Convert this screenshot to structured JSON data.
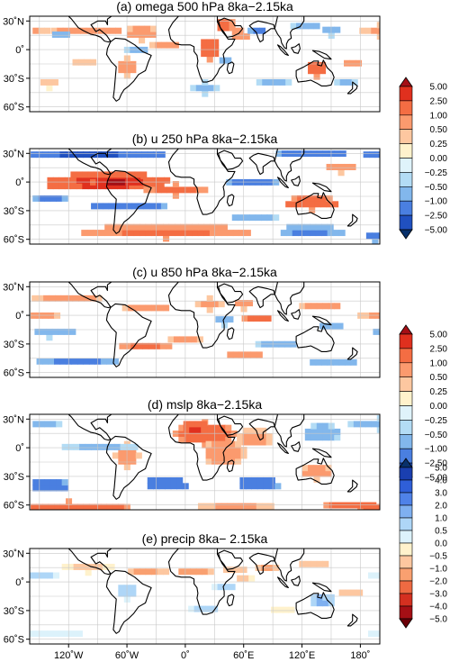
{
  "chart_data": [
    {
      "type": "heatmap",
      "title": "(a) omega 500 hPa 8ka−2.15ka",
      "lat_ticks": [
        "30˚N",
        "0˚",
        "30˚S",
        "60˚S"
      ],
      "colorbar": "bar1",
      "blobs": [
        {
          "lon": -100,
          "lat": 20,
          "rlon": 35,
          "rlat": 6,
          "v": 1.0
        },
        {
          "lon": -160,
          "lat": 20,
          "rlon": 18,
          "rlat": 6,
          "v": 0.6
        },
        {
          "lon": -130,
          "lat": 15,
          "rlon": 10,
          "rlat": 5,
          "v": -0.8
        },
        {
          "lon": -45,
          "lat": 17,
          "rlon": 18,
          "rlat": 7,
          "v": 0.8
        },
        {
          "lon": -20,
          "lat": 5,
          "rlon": 14,
          "rlat": 6,
          "v": 1.0
        },
        {
          "lon": 25,
          "lat": 0,
          "rlon": 12,
          "rlat": 10,
          "v": 2.0
        },
        {
          "lon": 40,
          "lat": 25,
          "rlon": 10,
          "rlat": 8,
          "v": 1.5
        },
        {
          "lon": 55,
          "lat": 15,
          "rlon": 10,
          "rlat": 7,
          "v": 1.0
        },
        {
          "lon": 75,
          "lat": 20,
          "rlon": 8,
          "rlat": 6,
          "v": -1.2
        },
        {
          "lon": 125,
          "lat": 25,
          "rlon": 14,
          "rlat": 6,
          "v": -1.0
        },
        {
          "lon": 150,
          "lat": 20,
          "rlon": 12,
          "rlat": 5,
          "v": -0.8
        },
        {
          "lon": 135,
          "lat": -20,
          "rlon": 12,
          "rlat": 8,
          "v": 1.5
        },
        {
          "lon": 170,
          "lat": -15,
          "rlon": 10,
          "rlat": 5,
          "v": 0.8
        },
        {
          "lon": -60,
          "lat": -18,
          "rlon": 12,
          "rlat": 9,
          "v": 1.0
        },
        {
          "lon": -50,
          "lat": 0,
          "rlon": 10,
          "rlat": 6,
          "v": -0.8
        },
        {
          "lon": 40,
          "lat": -12,
          "rlon": 8,
          "rlat": 5,
          "v": -0.8
        },
        {
          "lon": 90,
          "lat": -35,
          "rlon": 20,
          "rlat": 5,
          "v": -0.7
        },
        {
          "lon": 165,
          "lat": -35,
          "rlon": 15,
          "rlat": 5,
          "v": -0.6
        },
        {
          "lon": 20,
          "lat": -40,
          "rlon": 12,
          "rlat": 6,
          "v": -0.6
        },
        {
          "lon": -140,
          "lat": -35,
          "rlon": 12,
          "rlat": 5,
          "v": 0.4
        },
        {
          "lon": -105,
          "lat": -15,
          "rlon": 14,
          "rlat": 4,
          "v": 0.5
        }
      ]
    },
    {
      "type": "heatmap",
      "title": "(b) u 250 hPa 8ka−2.15ka",
      "lat_ticks": [
        "30˚N",
        "0˚",
        "30˚S",
        "60˚S"
      ],
      "colorbar": "none",
      "blobs": [
        {
          "lon": -80,
          "lat": 0,
          "rlon": 65,
          "rlat": 10,
          "v": 3.0
        },
        {
          "lon": -70,
          "lat": 0,
          "rlon": 25,
          "rlat": 6,
          "v": 5.5
        },
        {
          "lon": -10,
          "lat": -8,
          "rlon": 30,
          "rlat": 6,
          "v": 1.5
        },
        {
          "lon": -100,
          "lat": 28,
          "rlon": 80,
          "rlat": 5,
          "v": -2.8
        },
        {
          "lon": 130,
          "lat": 28,
          "rlon": 40,
          "rlat": 4,
          "v": -2.0
        },
        {
          "lon": -60,
          "lat": -26,
          "rlon": 40,
          "rlat": 5,
          "v": -2.0
        },
        {
          "lon": -140,
          "lat": -18,
          "rlon": 20,
          "rlat": 5,
          "v": -1.2
        },
        {
          "lon": 70,
          "lat": 0,
          "rlon": 25,
          "rlat": 6,
          "v": -1.5
        },
        {
          "lon": 130,
          "lat": -22,
          "rlon": 30,
          "rlat": 7,
          "v": 1.8
        },
        {
          "lon": 160,
          "lat": 15,
          "rlon": 18,
          "rlat": 5,
          "v": 1.0
        },
        {
          "lon": -20,
          "lat": -52,
          "rlon": 90,
          "rlat": 7,
          "v": 1.2
        },
        {
          "lon": 130,
          "lat": -52,
          "rlon": 35,
          "rlat": 7,
          "v": -1.2
        },
        {
          "lon": 70,
          "lat": -38,
          "rlon": 25,
          "rlat": 5,
          "v": -0.8
        },
        {
          "lon": -165,
          "lat": -58,
          "rlon": 12,
          "rlat": 4,
          "v": -1.5
        }
      ]
    },
    {
      "type": "heatmap",
      "title": "(c) u 850 hPa 8ka−2.15ka",
      "lat_ticks": [
        "30˚N",
        "0˚",
        "30˚S",
        "60˚S"
      ],
      "colorbar": "bar2",
      "blobs": [
        {
          "lon": -120,
          "lat": 18,
          "rlon": 35,
          "rlat": 6,
          "v": 0.8
        },
        {
          "lon": -155,
          "lat": 0,
          "rlon": 25,
          "rlat": 6,
          "v": 0.7
        },
        {
          "lon": -40,
          "lat": 8,
          "rlon": 22,
          "rlat": 6,
          "v": 1.0
        },
        {
          "lon": 25,
          "lat": 12,
          "rlon": 12,
          "rlat": 6,
          "v": 1.0
        },
        {
          "lon": 60,
          "lat": 12,
          "rlon": 12,
          "rlat": 5,
          "v": 0.8
        },
        {
          "lon": 75,
          "lat": -3,
          "rlon": 14,
          "rlat": 6,
          "v": 1.5
        },
        {
          "lon": 140,
          "lat": 10,
          "rlon": 20,
          "rlat": 6,
          "v": 0.8
        },
        {
          "lon": -140,
          "lat": -18,
          "rlon": 30,
          "rlat": 5,
          "v": -0.9
        },
        {
          "lon": -40,
          "lat": -32,
          "rlon": 25,
          "rlat": 6,
          "v": 1.2
        },
        {
          "lon": 0,
          "lat": -25,
          "rlon": 15,
          "rlat": 6,
          "v": 0.7
        },
        {
          "lon": 40,
          "lat": -5,
          "rlon": 12,
          "rlat": 5,
          "v": -0.8
        },
        {
          "lon": 95,
          "lat": -30,
          "rlon": 20,
          "rlat": 6,
          "v": -1.0
        },
        {
          "lon": 150,
          "lat": -12,
          "rlon": 15,
          "rlat": 5,
          "v": -1.0
        },
        {
          "lon": 60,
          "lat": -42,
          "rlon": 20,
          "rlat": 5,
          "v": 0.8
        },
        {
          "lon": -110,
          "lat": -48,
          "rlon": 40,
          "rlat": 6,
          "v": -1.2
        },
        {
          "lon": 150,
          "lat": -50,
          "rlon": 25,
          "rlat": 5,
          "v": -1.0
        }
      ]
    },
    {
      "type": "heatmap",
      "title": "(d) mslp 8ka−2.15ka",
      "lat_ticks": [
        "30˚N",
        "0˚",
        "30˚S",
        "60˚S"
      ],
      "colorbar": "none",
      "blobs": [
        {
          "lon": 20,
          "lat": 15,
          "rlon": 30,
          "rlat": 12,
          "v": 1.6
        },
        {
          "lon": 10,
          "lat": 20,
          "rlon": 15,
          "rlat": 7,
          "v": 2.6
        },
        {
          "lon": 40,
          "lat": -5,
          "rlon": 22,
          "rlat": 15,
          "v": 0.8
        },
        {
          "lon": 70,
          "lat": 10,
          "rlon": 20,
          "rlat": 10,
          "v": 0.7
        },
        {
          "lon": -60,
          "lat": -8,
          "rlon": 12,
          "rlat": 12,
          "v": 0.8
        },
        {
          "lon": 135,
          "lat": -25,
          "rlon": 18,
          "rlat": 8,
          "v": 0.8
        },
        {
          "lon": 140,
          "lat": 15,
          "rlon": 20,
          "rlat": 10,
          "v": -0.8
        },
        {
          "lon": -160,
          "lat": 25,
          "rlon": 30,
          "rlat": 6,
          "v": -0.8
        },
        {
          "lon": -140,
          "lat": -40,
          "rlon": 20,
          "rlat": 8,
          "v": -1.8
        },
        {
          "lon": -20,
          "lat": -38,
          "rlon": 22,
          "rlat": 8,
          "v": -2.0
        },
        {
          "lon": 75,
          "lat": -38,
          "rlon": 22,
          "rlat": 8,
          "v": -1.8
        },
        {
          "lon": -120,
          "lat": -62,
          "rlon": 60,
          "rlat": 6,
          "v": 2.0
        },
        {
          "lon": 50,
          "lat": -62,
          "rlon": 40,
          "rlat": 5,
          "v": 0.6
        },
        {
          "lon": 170,
          "lat": -60,
          "rlon": 25,
          "rlat": 6,
          "v": 2.0
        },
        {
          "lon": -90,
          "lat": 0,
          "rlon": 40,
          "rlat": 5,
          "v": -0.6
        }
      ]
    },
    {
      "type": "heatmap",
      "title": "(e) precip 8ka− 2.15ka",
      "lat_ticks": [
        "30˚N",
        "0˚",
        "30˚S",
        "60˚S"
      ],
      "lon_ticks": [
        "120˚W",
        "60˚W",
        "0˚",
        "60˚E",
        "120˚E",
        "180˚"
      ],
      "colorbar": "bar3",
      "blobs": [
        {
          "lon": -100,
          "lat": 15,
          "rlon": 30,
          "rlat": 5,
          "v": -0.6
        },
        {
          "lon": -40,
          "lat": 10,
          "rlon": 22,
          "rlat": 5,
          "v": -1.2
        },
        {
          "lon": 10,
          "lat": 10,
          "rlon": 20,
          "rlat": 5,
          "v": -1.5
        },
        {
          "lon": 50,
          "lat": 12,
          "rlon": 14,
          "rlat": 5,
          "v": -0.8
        },
        {
          "lon": 85,
          "lat": 15,
          "rlon": 10,
          "rlat": 6,
          "v": -1.5
        },
        {
          "lon": 130,
          "lat": 18,
          "rlon": 16,
          "rlat": 5,
          "v": -1.0
        },
        {
          "lon": -60,
          "lat": -10,
          "rlon": 12,
          "rlat": 8,
          "v": 1.0
        },
        {
          "lon": -150,
          "lat": 5,
          "rlon": 25,
          "rlat": 4,
          "v": 0.7
        },
        {
          "lon": 40,
          "lat": -5,
          "rlon": 10,
          "rlat": 6,
          "v": 1.0
        },
        {
          "lon": 60,
          "lat": 2,
          "rlon": 10,
          "rlat": 4,
          "v": -0.8
        },
        {
          "lon": 140,
          "lat": -20,
          "rlon": 14,
          "rlat": 8,
          "v": 1.2
        },
        {
          "lon": 170,
          "lat": -12,
          "rlon": 15,
          "rlat": 5,
          "v": -0.8
        },
        {
          "lon": -140,
          "lat": -55,
          "rlon": 35,
          "rlat": 5,
          "v": 0.4
        },
        {
          "lon": 20,
          "lat": -28,
          "rlon": 14,
          "rlat": 6,
          "v": 0.8
        },
        {
          "lon": 100,
          "lat": -30,
          "rlon": 15,
          "rlat": 5,
          "v": -0.5
        }
      ]
    }
  ],
  "colorbars": {
    "bar1": {
      "labels": [
        "5.00",
        "2.50",
        "1.00",
        "0.50",
        "0.25",
        "0.00",
        "−0.25",
        "−0.50",
        "−1.00",
        "−2.50",
        "−5.00"
      ],
      "colors": [
        "#a50f15",
        "#e0301e",
        "#f46d43",
        "#fb9a6e",
        "#fdc7a0",
        "#fff2cc",
        "#dff3fb",
        "#b3dcf5",
        "#82b7ec",
        "#4a7fe0",
        "#2050c0",
        "#08306b"
      ]
    },
    "bar2": {
      "labels": [
        "5.00",
        "2.50",
        "1.00",
        "0.50",
        "0.25",
        "0.00",
        "−0.25",
        "−0.50",
        "−1.00",
        "−2.50",
        "−5.00"
      ],
      "colors": [
        "#a50f15",
        "#e0301e",
        "#f46d43",
        "#fb9a6e",
        "#fdc7a0",
        "#fff2cc",
        "#dff3fb",
        "#b3dcf5",
        "#82b7ec",
        "#4a7fe0",
        "#2050c0",
        "#08306b"
      ]
    },
    "bar3": {
      "labels": [
        "5.0",
        "4.0",
        "3.0",
        "2.0",
        "1.0",
        "0.5",
        "0.0",
        "−0.5",
        "−1.0",
        "−2.0",
        "−3.0",
        "−4.0",
        "−5.0"
      ],
      "colors": [
        "#08306b",
        "#1a3fb0",
        "#2f5fd8",
        "#4f82e8",
        "#7fb0f0",
        "#aed6f7",
        "#dcf2fb",
        "#fff2cc",
        "#fdc7a0",
        "#f9a070",
        "#ee6a42",
        "#d43020",
        "#a50f15",
        "#6b0008"
      ]
    }
  }
}
